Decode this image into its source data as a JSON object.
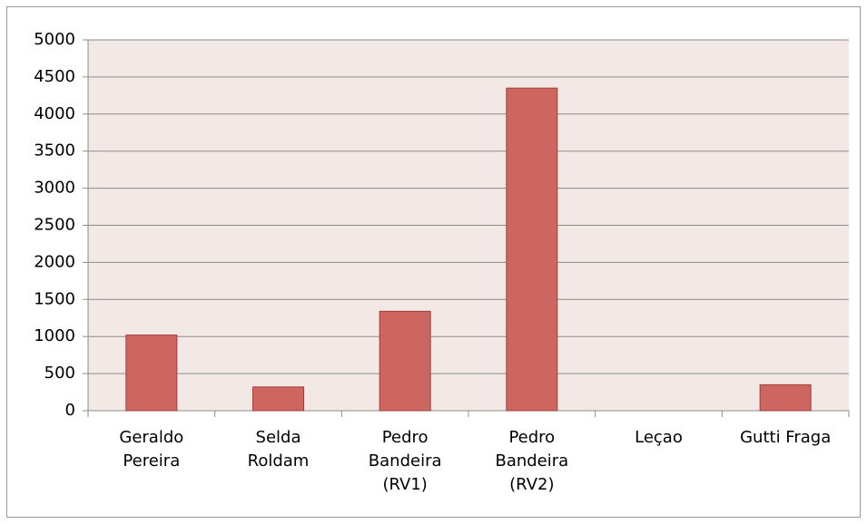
{
  "chart_data": {
    "type": "bar",
    "categories": [
      "Geraldo\nPereira",
      "Selda\nRoldam",
      "Pedro\nBandeira\n(RV1)",
      "Pedro\nBandeira\n(RV2)",
      "Leçao",
      "Gutti Fraga"
    ],
    "values": [
      1020,
      320,
      1340,
      4350,
      0,
      350
    ],
    "color": "#cd6560",
    "ylim": [
      0,
      5000
    ],
    "yticks": [
      0,
      500,
      1000,
      1500,
      2000,
      2500,
      3000,
      3500,
      4000,
      4500,
      5000
    ],
    "grid": true
  }
}
